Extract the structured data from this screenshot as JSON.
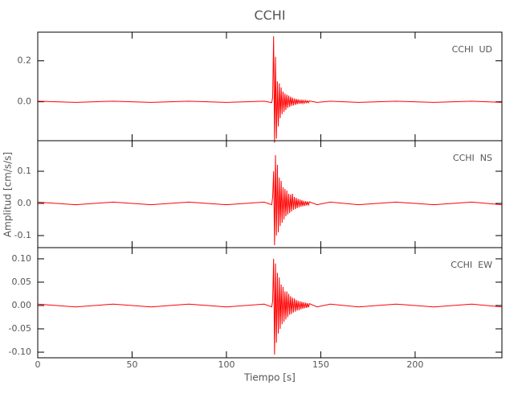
{
  "chart_data": {
    "type": "line",
    "title": "CCHI",
    "xlabel": "Tiempo [s]",
    "ylabel": "Amplitud [cm/s/s]",
    "xlim": [
      0,
      246
    ],
    "xticks": [
      0,
      50,
      100,
      150,
      200
    ],
    "x": [
      0,
      20,
      40,
      60,
      80,
      100,
      120,
      124,
      124.5,
      125,
      125.5,
      126,
      126.5,
      127,
      127.5,
      128,
      128.5,
      129,
      129.5,
      130,
      130.5,
      131,
      131.5,
      132,
      132.5,
      133,
      133.5,
      134,
      134.5,
      135,
      135.5,
      136,
      136.5,
      137,
      137.5,
      138,
      138.5,
      139,
      139.5,
      140,
      140.5,
      141,
      141.5,
      142,
      142.5,
      143,
      143.5,
      144,
      148,
      155,
      170,
      190,
      210,
      230,
      246
    ],
    "panels": [
      {
        "label": "CCHI  UD",
        "color": "#ff0000",
        "ylim": [
          -0.19,
          0.34
        ],
        "yticks": [
          {
            "value": 0,
            "label": "0.0"
          },
          0.2
        ],
        "values": [
          0.003,
          -0.003,
          0.003,
          -0.003,
          0.003,
          -0.003,
          0.003,
          -0.004,
          0.02,
          0.32,
          -0.2,
          0.22,
          -0.18,
          0.1,
          -0.12,
          0.09,
          -0.08,
          0.07,
          -0.06,
          0.05,
          -0.05,
          0.04,
          -0.04,
          0.035,
          -0.03,
          0.03,
          -0.025,
          0.025,
          -0.02,
          0.02,
          -0.018,
          0.016,
          -0.015,
          0.014,
          -0.012,
          0.012,
          -0.01,
          0.01,
          -0.009,
          0.008,
          -0.008,
          0.007,
          -0.006,
          0.006,
          -0.005,
          0.005,
          -0.005,
          0.004,
          -0.003,
          0.003,
          -0.003,
          0.003,
          -0.003,
          0.003,
          -0.003
        ]
      },
      {
        "label": "CCHI  NS",
        "color": "#ff0000",
        "ylim": [
          -0.1375,
          0.195
        ],
        "yticks": [
          -0.1,
          {
            "value": 0,
            "label": "0.0"
          },
          0.1
        ],
        "values": [
          0.004,
          -0.004,
          0.004,
          -0.004,
          0.004,
          -0.004,
          0.004,
          -0.004,
          0.02,
          0.1,
          -0.13,
          0.15,
          -0.1,
          0.12,
          -0.09,
          0.08,
          -0.07,
          0.07,
          -0.06,
          0.05,
          -0.05,
          0.045,
          -0.04,
          0.04,
          -0.035,
          0.03,
          -0.03,
          0.028,
          -0.025,
          0.03,
          -0.02,
          0.02,
          -0.018,
          0.017,
          -0.015,
          0.014,
          -0.012,
          0.012,
          -0.01,
          0.01,
          -0.009,
          0.008,
          -0.008,
          0.007,
          -0.006,
          0.006,
          -0.005,
          0.005,
          -0.004,
          0.004,
          -0.004,
          0.004,
          -0.004,
          0.004,
          -0.004
        ]
      },
      {
        "label": "CCHI  EW",
        "color": "#ff0000",
        "ylim": [
          -0.112,
          0.124
        ],
        "yticks": [
          {
            "value": -0.1,
            "label": "-0.10"
          },
          -0.05,
          {
            "value": 0,
            "label": "0.00"
          },
          0.05,
          {
            "value": 0.1,
            "label": "0.10"
          }
        ],
        "values": [
          0.003,
          -0.003,
          0.003,
          -0.003,
          0.003,
          -0.003,
          0.003,
          -0.003,
          0.01,
          0.1,
          -0.105,
          0.09,
          -0.08,
          0.07,
          -0.06,
          0.06,
          -0.05,
          0.045,
          -0.04,
          0.04,
          -0.035,
          0.03,
          -0.03,
          0.03,
          -0.025,
          0.025,
          -0.02,
          0.02,
          -0.018,
          0.017,
          -0.015,
          0.015,
          -0.013,
          0.012,
          -0.011,
          0.01,
          -0.01,
          0.009,
          -0.008,
          0.008,
          -0.007,
          0.007,
          -0.006,
          0.006,
          -0.005,
          0.005,
          -0.004,
          0.004,
          -0.003,
          0.003,
          -0.003,
          0.003,
          -0.003,
          0.003,
          -0.003
        ]
      }
    ]
  }
}
